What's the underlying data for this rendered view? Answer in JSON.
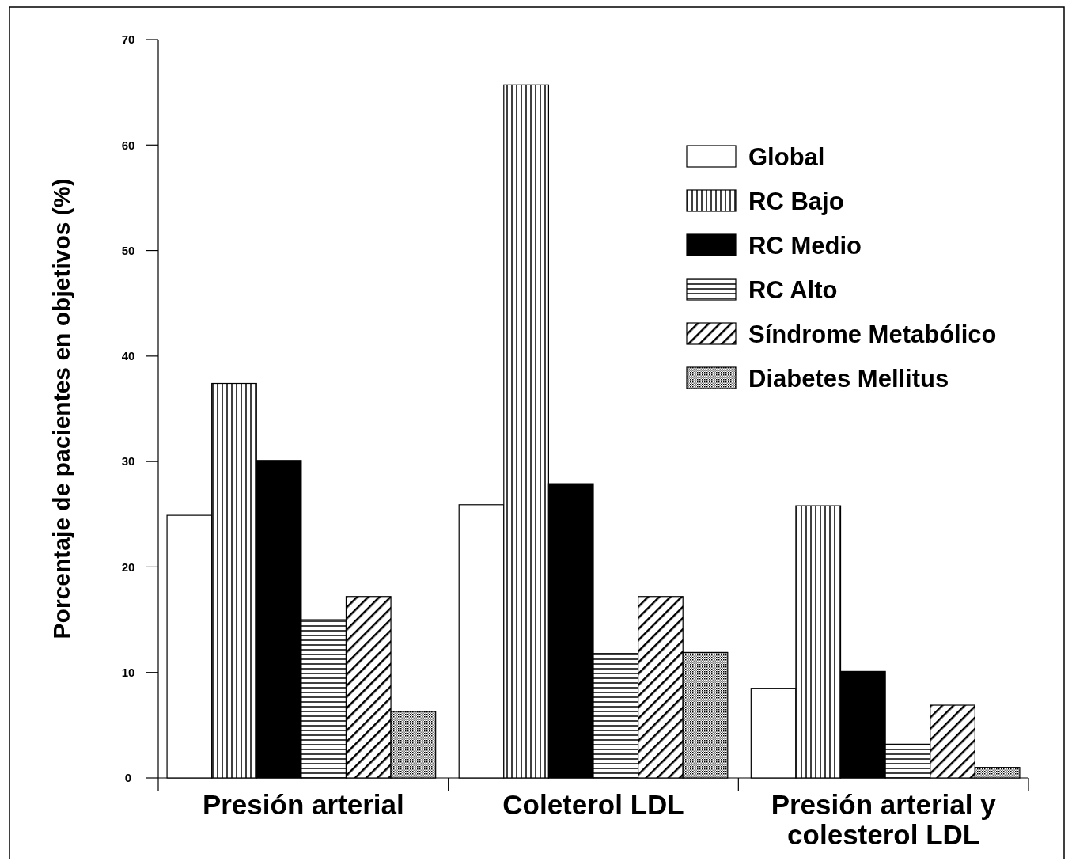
{
  "chart_data": {
    "type": "bar",
    "ylabel": "Porcentaje de pacientes en objetivos (%)",
    "categories": [
      "Presión arterial",
      "Coleterol LDL",
      "Presión arterial y colesterol LDL"
    ],
    "ylim": [
      0,
      70
    ],
    "yticks": [
      0,
      10,
      20,
      30,
      40,
      50,
      60,
      70
    ],
    "grid": false,
    "legend": "top right",
    "series": [
      {
        "name": "Global",
        "color": "#ffffff",
        "values": [
          24.9,
          25.9,
          8.5
        ]
      },
      {
        "name": "RC Bajo",
        "color": "#000000",
        "values": [
          37.4,
          65.7,
          25.8
        ]
      },
      {
        "name": "RC Medio",
        "color": "#000000",
        "values": [
          30.1,
          27.9,
          10.1
        ]
      },
      {
        "name": "RC Alto",
        "color": "#000000",
        "values": [
          15.0,
          11.8,
          3.2
        ]
      },
      {
        "name": "Síndrome Metabólico",
        "color": "#000000",
        "values": [
          17.2,
          17.2,
          6.9
        ]
      },
      {
        "name": "Diabetes Mellitus",
        "color": "#000000",
        "values": [
          6.3,
          11.9,
          1.0
        ]
      }
    ]
  }
}
